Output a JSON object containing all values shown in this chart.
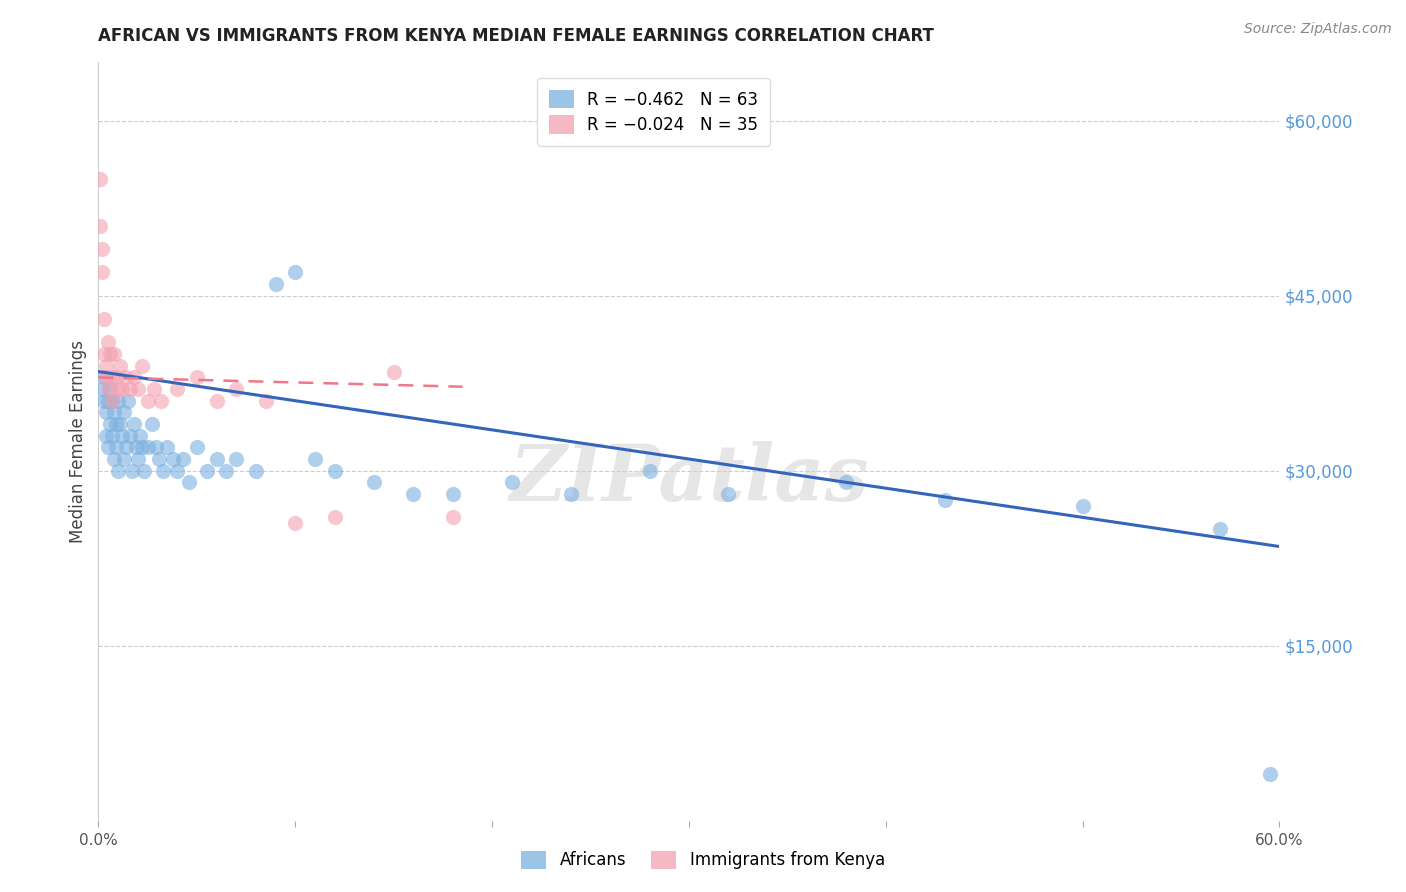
{
  "title": "AFRICAN VS IMMIGRANTS FROM KENYA MEDIAN FEMALE EARNINGS CORRELATION CHART",
  "source": "Source: ZipAtlas.com",
  "ylabel": "Median Female Earnings",
  "right_ytick_labels": [
    "",
    "$15,000",
    "$30,000",
    "$45,000",
    "$60,000"
  ],
  "right_ytick_values": [
    0,
    15000,
    30000,
    45000,
    60000
  ],
  "watermark": "ZIPatlas",
  "legend_label1": "Africans",
  "legend_label2": "Immigrants from Kenya",
  "blue_color": "#7ab0e0",
  "pink_color": "#f4a0b0",
  "blue_line_color": "#3366bb",
  "pink_line_color": "#ee7788",
  "title_color": "#222222",
  "right_label_color": "#5599dd",
  "xlim": [
    0.0,
    0.6
  ],
  "ylim": [
    0,
    65000
  ],
  "africans_x": [
    0.002,
    0.003,
    0.003,
    0.004,
    0.004,
    0.005,
    0.005,
    0.006,
    0.006,
    0.007,
    0.007,
    0.008,
    0.008,
    0.009,
    0.009,
    0.01,
    0.01,
    0.011,
    0.012,
    0.013,
    0.013,
    0.014,
    0.015,
    0.016,
    0.017,
    0.018,
    0.019,
    0.02,
    0.021,
    0.022,
    0.023,
    0.025,
    0.027,
    0.029,
    0.031,
    0.033,
    0.035,
    0.038,
    0.04,
    0.043,
    0.046,
    0.05,
    0.055,
    0.06,
    0.065,
    0.07,
    0.08,
    0.09,
    0.1,
    0.11,
    0.12,
    0.14,
    0.16,
    0.18,
    0.21,
    0.24,
    0.28,
    0.32,
    0.38,
    0.43,
    0.5,
    0.57,
    0.595
  ],
  "africans_y": [
    37000,
    38000,
    36000,
    35000,
    33000,
    36000,
    32000,
    37000,
    34000,
    36000,
    33000,
    35000,
    31000,
    34000,
    32000,
    36000,
    30000,
    34000,
    33000,
    35000,
    31000,
    32000,
    36000,
    33000,
    30000,
    34000,
    32000,
    31000,
    33000,
    32000,
    30000,
    32000,
    34000,
    32000,
    31000,
    30000,
    32000,
    31000,
    30000,
    31000,
    29000,
    32000,
    30000,
    31000,
    30000,
    31000,
    30000,
    46000,
    47000,
    31000,
    30000,
    29000,
    28000,
    28000,
    29000,
    28000,
    30000,
    28000,
    29000,
    27500,
    27000,
    25000,
    4000
  ],
  "kenya_x": [
    0.001,
    0.001,
    0.002,
    0.002,
    0.003,
    0.003,
    0.004,
    0.004,
    0.005,
    0.005,
    0.006,
    0.007,
    0.007,
    0.008,
    0.009,
    0.01,
    0.011,
    0.012,
    0.014,
    0.016,
    0.018,
    0.02,
    0.022,
    0.025,
    0.028,
    0.032,
    0.04,
    0.05,
    0.06,
    0.07,
    0.085,
    0.1,
    0.12,
    0.15,
    0.18
  ],
  "kenya_y": [
    55000,
    51000,
    49000,
    47000,
    43000,
    40000,
    39000,
    38000,
    41000,
    37000,
    40000,
    38000,
    36000,
    40000,
    38000,
    37000,
    39000,
    37000,
    38000,
    37000,
    38000,
    37000,
    39000,
    36000,
    37000,
    36000,
    37000,
    38000,
    36000,
    37000,
    36000,
    25500,
    26000,
    38500,
    26000
  ],
  "blue_trendline_x": [
    0.0,
    0.6
  ],
  "blue_trendline_y": [
    38500,
    23500
  ],
  "pink_trendline_x": [
    0.0,
    0.185
  ],
  "pink_trendline_y": [
    38000,
    37200
  ]
}
